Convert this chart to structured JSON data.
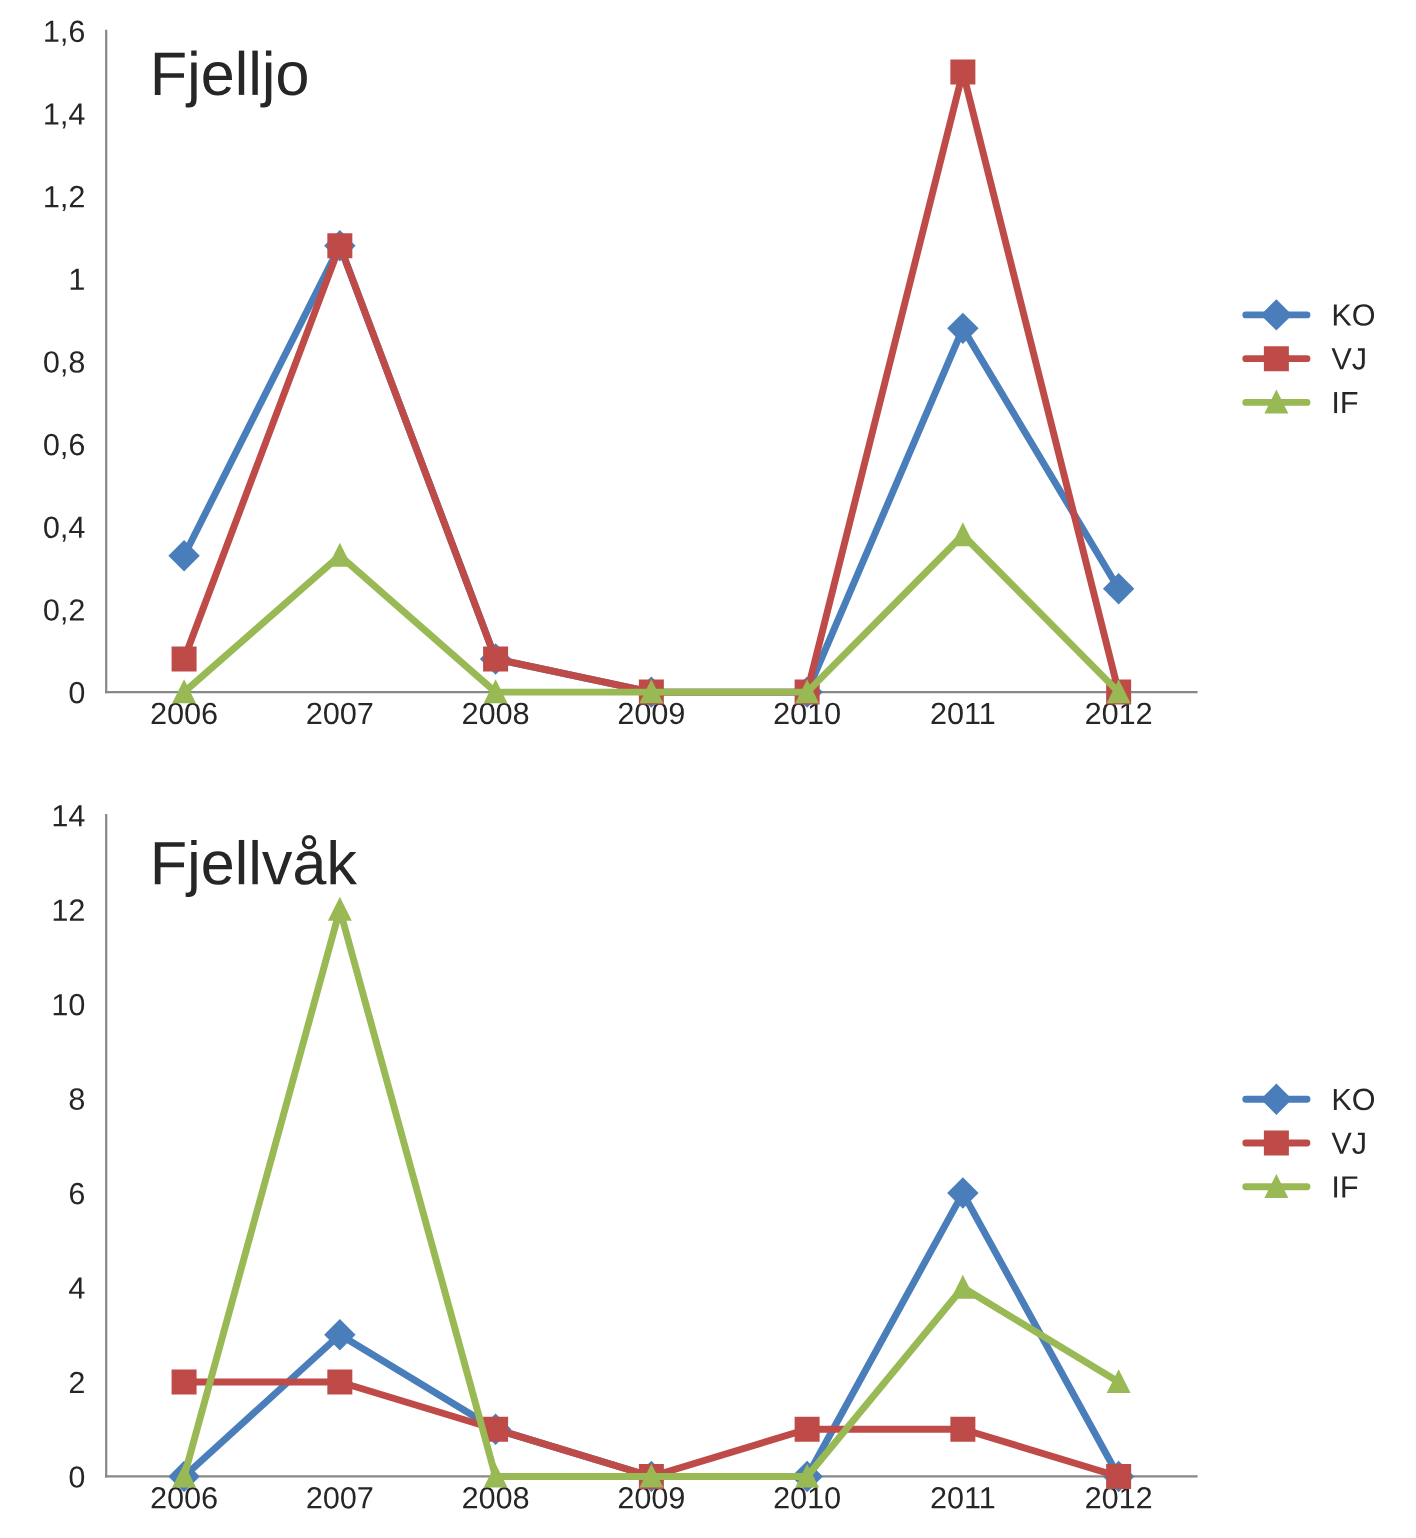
{
  "chart_data": [
    {
      "type": "line",
      "title": "Fjelljo",
      "categories": [
        "2006",
        "2007",
        "2008",
        "2009",
        "2010",
        "2011",
        "2012"
      ],
      "series": [
        {
          "name": "KO",
          "color": "#4a7ebb",
          "marker": "diamond",
          "values": [
            0.33,
            1.08,
            0.08,
            0,
            0,
            0.88,
            0.25
          ]
        },
        {
          "name": "VJ",
          "color": "#be4b48",
          "marker": "square",
          "values": [
            0.08,
            1.08,
            0.08,
            0,
            0,
            1.5,
            0
          ]
        },
        {
          "name": "IF",
          "color": "#98b954",
          "marker": "triangle",
          "values": [
            0,
            0.33,
            0,
            0,
            0,
            0.38,
            0
          ]
        }
      ],
      "ylim": [
        0,
        1.6
      ],
      "yticks": [
        0,
        {
          "value": 0.2,
          "label": "0,2"
        },
        {
          "value": 0.4,
          "label": "0,4"
        },
        {
          "value": 0.6,
          "label": "0,6"
        },
        {
          "value": 0.8,
          "label": "0,8"
        },
        1,
        {
          "value": 1.2,
          "label": "1,2"
        },
        {
          "value": 1.4,
          "label": "1,4"
        },
        {
          "value": 1.6,
          "label": "1,6"
        }
      ],
      "grid": false,
      "legend": "right"
    },
    {
      "type": "line",
      "title": "Fjellvåk",
      "categories": [
        "2006",
        "2007",
        "2008",
        "2009",
        "2010",
        "2011",
        "2012"
      ],
      "series": [
        {
          "name": "KO",
          "color": "#4a7ebb",
          "marker": "diamond",
          "values": [
            0,
            3,
            1,
            0,
            0,
            6,
            0
          ]
        },
        {
          "name": "VJ",
          "color": "#be4b48",
          "marker": "square",
          "values": [
            2,
            2,
            1,
            0,
            1,
            1,
            0
          ]
        },
        {
          "name": "IF",
          "color": "#98b954",
          "marker": "triangle",
          "values": [
            0,
            12,
            0,
            0,
            0,
            4,
            2
          ]
        }
      ],
      "ylim": [
        0,
        14
      ],
      "yticks": [
        0,
        2,
        4,
        6,
        8,
        10,
        12,
        14
      ],
      "grid": false,
      "legend": "right"
    }
  ]
}
